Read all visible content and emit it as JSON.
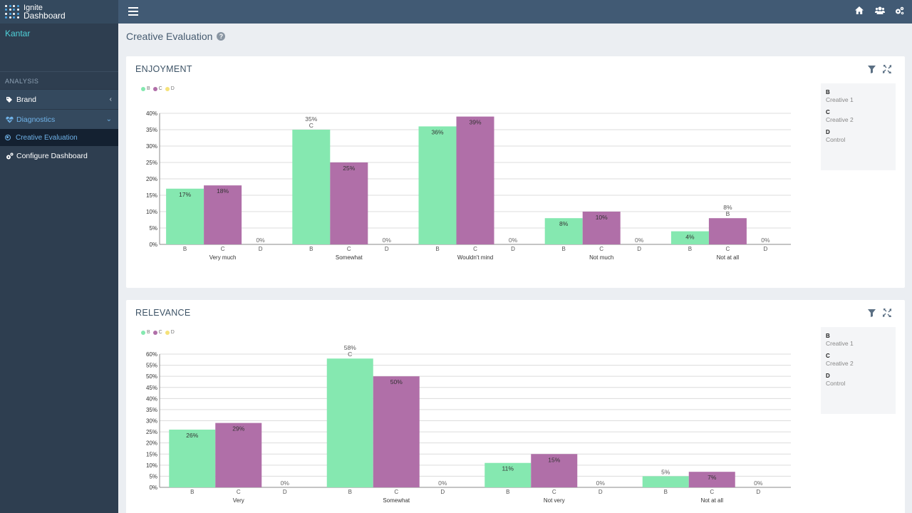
{
  "app": {
    "logo_line1": "Ignite",
    "logo_line2": "Dashboard",
    "org": "Kantar"
  },
  "sidebar": {
    "section": "ANALYSIS",
    "items": [
      {
        "label": "Brand"
      },
      {
        "label": "Diagnostics"
      },
      {
        "label": "Creative Evaluation"
      },
      {
        "label": "Configure Dashboard"
      }
    ]
  },
  "page": {
    "title": "Creative Evaluation"
  },
  "legend_codes": [
    {
      "code": "B",
      "name": "Creative 1"
    },
    {
      "code": "C",
      "name": "Creative 2"
    },
    {
      "code": "D",
      "name": "Control"
    }
  ],
  "colors": {
    "B": "#85e8b0",
    "C": "#b06fa8",
    "D": "#f5e27a"
  },
  "charts": [
    {
      "title": "ENJOYMENT",
      "chart_data": {
        "type": "bar",
        "categories": [
          "Very much",
          "Somewhat",
          "Wouldn't mind",
          "Not much",
          "Not at all"
        ],
        "series": [
          {
            "name": "B",
            "values": [
              17,
              35,
              36,
              8,
              4
            ]
          },
          {
            "name": "C",
            "values": [
              18,
              25,
              39,
              10,
              8
            ]
          },
          {
            "name": "D",
            "values": [
              0,
              0,
              0,
              0,
              0
            ]
          }
        ],
        "value_labels": {
          "B": [
            "17%",
            "35%",
            "36%",
            "8%",
            "4%"
          ],
          "C": [
            "18%",
            "25%",
            "39%",
            "10%",
            "8%"
          ],
          "D": [
            "0%",
            "0%",
            "0%",
            "0%",
            "0%"
          ]
        },
        "significance": {
          "B": [
            "",
            "C",
            "",
            "",
            ""
          ],
          "C": [
            "",
            "",
            "",
            "",
            "B"
          ],
          "D": [
            "",
            "",
            "",
            "",
            ""
          ]
        },
        "ylim": [
          0,
          40
        ],
        "yticks": [
          "0%",
          "5%",
          "10%",
          "15%",
          "20%",
          "25%",
          "30%",
          "35%",
          "40%"
        ],
        "grid": true,
        "legend": "top-left"
      }
    },
    {
      "title": "RELEVANCE",
      "chart_data": {
        "type": "bar",
        "categories": [
          "Very",
          "Somewhat",
          "Not very",
          "Not at all"
        ],
        "series": [
          {
            "name": "B",
            "values": [
              26,
              58,
              11,
              5
            ]
          },
          {
            "name": "C",
            "values": [
              29,
              50,
              15,
              7
            ]
          },
          {
            "name": "D",
            "values": [
              0,
              0,
              0,
              0
            ]
          }
        ],
        "value_labels": {
          "B": [
            "26%",
            "58%",
            "11%",
            "5%"
          ],
          "C": [
            "29%",
            "50%",
            "15%",
            "7%"
          ],
          "D": [
            "0%",
            "0%",
            "0%",
            "0%"
          ]
        },
        "significance": {
          "B": [
            "",
            "C",
            "",
            ""
          ],
          "C": [
            "",
            "",
            "",
            ""
          ],
          "D": [
            "",
            "",
            "",
            ""
          ]
        },
        "ylim": [
          0,
          60
        ],
        "yticks": [
          "0%",
          "5%",
          "10%",
          "15%",
          "20%",
          "25%",
          "30%",
          "35%",
          "40%",
          "45%",
          "50%",
          "55%",
          "60%"
        ],
        "grid": true,
        "legend": "top-left"
      }
    }
  ]
}
